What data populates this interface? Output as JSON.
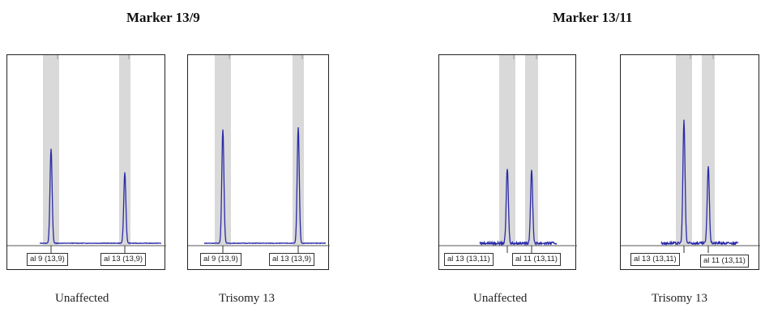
{
  "groups": [
    {
      "title": "Marker 13/9"
    },
    {
      "title": "Marker 13/11"
    }
  ],
  "chart_data": [
    {
      "type": "line",
      "group_title": "Marker 13/9",
      "caption": "Unaffected",
      "series_color": "#2a2aa8",
      "highlight_color": "#d9d9d9",
      "ylim": [
        0,
        100
      ],
      "peaks": [
        {
          "label": "al 9 (13,9)",
          "height": 44
        },
        {
          "label": "al 13 (13,9)",
          "height": 33
        }
      ]
    },
    {
      "type": "line",
      "group_title": "Marker 13/9",
      "caption": "Trisomy 13",
      "series_color": "#2a2aa8",
      "highlight_color": "#d9d9d9",
      "ylim": [
        0,
        100
      ],
      "peaks": [
        {
          "label": "al 9 (13,9)",
          "height": 53
        },
        {
          "label": "al 13 (13,9)",
          "height": 54
        }
      ]
    },
    {
      "type": "line",
      "group_title": "Marker 13/11",
      "caption": "Unaffected",
      "series_color": "#2a2aa8",
      "highlight_color": "#d9d9d9",
      "ylim": [
        0,
        100
      ],
      "peaks": [
        {
          "label": "al 13 (13,11)",
          "height": 35
        },
        {
          "label": "al 11 (13,11)",
          "height": 34
        }
      ]
    },
    {
      "type": "line",
      "group_title": "Marker 13/11",
      "caption": "Trisomy 13",
      "series_color": "#2a2aa8",
      "highlight_color": "#d9d9d9",
      "ylim": [
        0,
        100
      ],
      "peaks": [
        {
          "label": "al 13 (13,11)",
          "height": 57
        },
        {
          "label": "al 11 (13,11)",
          "height": 36
        }
      ]
    }
  ]
}
